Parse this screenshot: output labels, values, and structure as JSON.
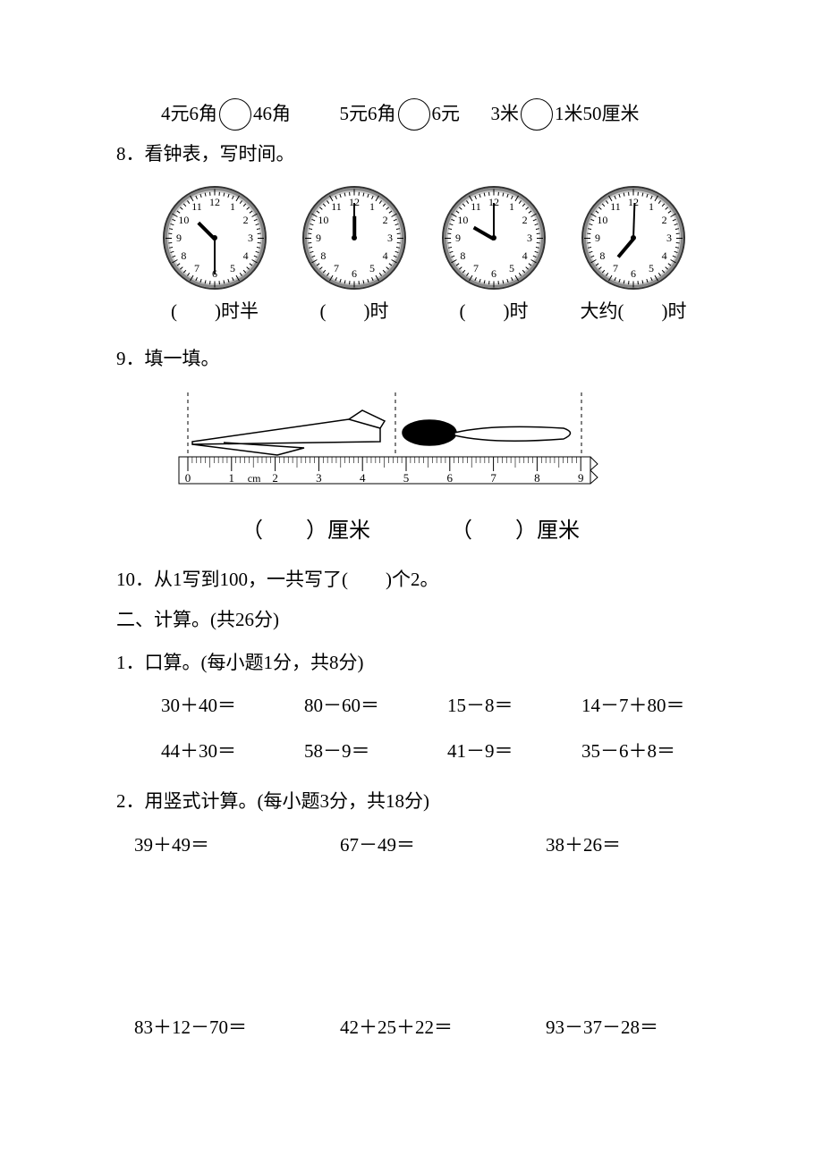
{
  "colors": {
    "text": "#000000",
    "bg": "#ffffff",
    "clock_border": "#333333"
  },
  "typography": {
    "base_font_size_pt": 16,
    "font_family": "SimSun"
  },
  "q_compare": {
    "items": [
      {
        "left": "4元6角",
        "right": "46角"
      },
      {
        "left": "5元6角",
        "right": "6元"
      },
      {
        "left": "3米",
        "right": "1米50厘米"
      }
    ]
  },
  "q8": {
    "number": "8．",
    "title": "看钟表，写时间。",
    "clocks": [
      {
        "hour_angle_deg": 225,
        "minute_angle_deg": 90,
        "label_before": "(",
        "label_mid": "",
        "label_after": ")时半"
      },
      {
        "hour_angle_deg": 270,
        "minute_angle_deg": 270,
        "label_before": "(",
        "label_mid": "",
        "label_after": ")时"
      },
      {
        "hour_angle_deg": 210,
        "minute_angle_deg": 270,
        "label_before": "(",
        "label_mid": "",
        "label_after": ")时"
      },
      {
        "hour_angle_deg": 130,
        "minute_angle_deg": 272,
        "label_before": "大约(",
        "label_mid": "",
        "label_after": ")时"
      }
    ],
    "clock_numbers": [
      "12",
      "1",
      "2",
      "3",
      "4",
      "5",
      "6",
      "7",
      "8",
      "9",
      "10",
      "11"
    ]
  },
  "q9": {
    "number": "9．",
    "title": "填一填。",
    "ruler": {
      "unit_label": "cm",
      "ticks": [
        "0",
        "1",
        "2",
        "3",
        "4",
        "5",
        "6",
        "7",
        "8",
        "9"
      ],
      "segments": [
        {
          "label_open": "（",
          "label_close": "）厘米"
        },
        {
          "label_open": "（",
          "label_close": "）厘米"
        }
      ]
    }
  },
  "q10": {
    "number": "10．",
    "text_before": "从1写到100，一共写了(",
    "text_after": ")个2。"
  },
  "section2": {
    "heading": "二、计算。(共26分)",
    "sub1": {
      "title": "1．口算。(每小题1分，共8分)",
      "items": [
        "30＋40＝",
        "80－60＝",
        "15－8＝",
        "14－7＋80＝",
        "44＋30＝",
        "58－9＝",
        "41－9＝",
        "35－6＋8＝"
      ]
    },
    "sub2": {
      "title": "2．用竖式计算。(每小题3分，共18分)",
      "row1": [
        "39＋49＝",
        "67－49＝",
        "38＋26＝"
      ],
      "row2": [
        "83＋12－70＝",
        "42＋25＋22＝",
        "93－37－28＝"
      ]
    }
  }
}
